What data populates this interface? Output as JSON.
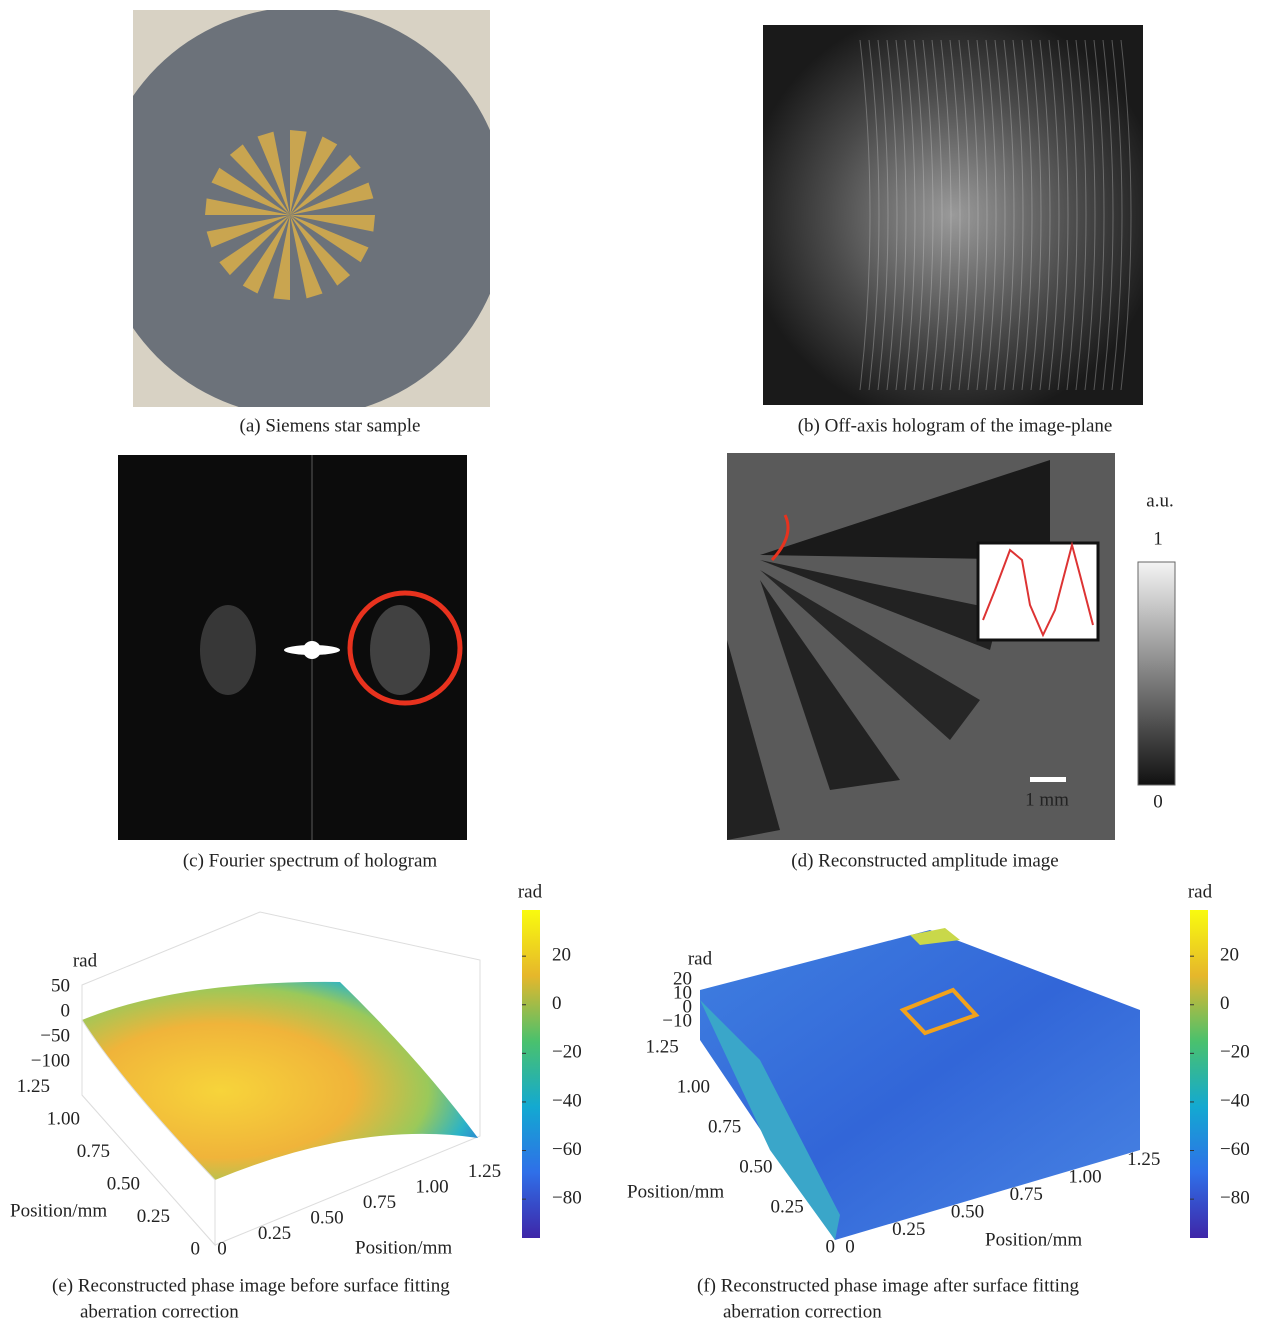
{
  "panels": [
    {
      "caption": "(a) Siemens star sample"
    },
    {
      "caption": "(b) Off-axis hologram of the image-plane"
    },
    {
      "caption": "(c) Fourier spectrum of hologram"
    },
    {
      "caption": "(d) Reconstructed amplitude image",
      "colorbar": {
        "label": "a.u.",
        "lim": [
          0,
          1
        ],
        "ticks": [
          0,
          1
        ]
      },
      "scale_bar": "1 mm"
    },
    {
      "caption_lines": [
        "(e) Reconstructed phase image before surface fitting",
        "aberration correction"
      ],
      "colorbar": {
        "label": "rad",
        "lim": [
          -96,
          39
        ],
        "ticks": [
          {
            "value": 20,
            "label": "20"
          },
          {
            "value": 0,
            "label": "0"
          },
          {
            "value": -20,
            "label": "−20"
          },
          {
            "value": -40,
            "label": "−40"
          },
          {
            "value": -60,
            "label": "−60"
          },
          {
            "value": -80,
            "label": "−80"
          }
        ]
      },
      "z_axis": {
        "label": "rad",
        "ticks": [
          {
            "value": 50,
            "label": "50"
          },
          {
            "value": 0,
            "label": "0"
          },
          {
            "value": -50,
            "label": "−50"
          },
          {
            "value": -100,
            "label": "−100"
          }
        ]
      },
      "x_axis": {
        "label": "Position/mm",
        "ticks": [
          {
            "value": 0,
            "label": "0"
          },
          {
            "value": 0.25,
            "label": "0.25"
          },
          {
            "value": 0.5,
            "label": "0.50"
          },
          {
            "value": 0.75,
            "label": "0.75"
          },
          {
            "value": 1,
            "label": "1.00"
          },
          {
            "value": 1.25,
            "label": "1.25"
          }
        ]
      },
      "y_axis": {
        "label": "Position/mm",
        "ticks": [
          {
            "value": 0,
            "label": "0"
          },
          {
            "value": 0.25,
            "label": "0.25"
          },
          {
            "value": 0.5,
            "label": "0.50"
          },
          {
            "value": 0.75,
            "label": "0.75"
          },
          {
            "value": 1,
            "label": "1.00"
          },
          {
            "value": 1.25,
            "label": "1.25"
          }
        ]
      }
    },
    {
      "caption_lines": [
        "(f) Reconstructed phase image after surface fitting",
        "aberration correction"
      ],
      "colorbar": {
        "label": "rad",
        "lim": [
          -96,
          39
        ],
        "ticks": [
          {
            "value": 20,
            "label": "20"
          },
          {
            "value": 0,
            "label": "0"
          },
          {
            "value": -20,
            "label": "−20"
          },
          {
            "value": -40,
            "label": "−40"
          },
          {
            "value": -60,
            "label": "−60"
          },
          {
            "value": -80,
            "label": "−80"
          }
        ]
      },
      "z_axis": {
        "label": "rad",
        "ticks": [
          {
            "value": 20,
            "label": "20"
          },
          {
            "value": 10,
            "label": "10"
          },
          {
            "value": 0,
            "label": "0"
          },
          {
            "value": -10,
            "label": "−10"
          }
        ]
      },
      "x_axis": {
        "label": "Position/mm",
        "ticks": [
          {
            "value": 0,
            "label": "0"
          },
          {
            "value": 0.25,
            "label": "0.25"
          },
          {
            "value": 0.5,
            "label": "0.50"
          },
          {
            "value": 0.75,
            "label": "0.75"
          },
          {
            "value": 1,
            "label": "1.00"
          },
          {
            "value": 1.25,
            "label": "1.25"
          }
        ]
      },
      "y_axis": {
        "label": "Position/mm",
        "ticks": [
          {
            "value": 0,
            "label": "0"
          },
          {
            "value": 0.25,
            "label": "0.25"
          },
          {
            "value": 0.5,
            "label": "0.50"
          },
          {
            "value": 0.75,
            "label": "0.75"
          },
          {
            "value": 1,
            "label": "1.00"
          },
          {
            "value": 1.25,
            "label": "1.25"
          }
        ]
      }
    }
  ]
}
